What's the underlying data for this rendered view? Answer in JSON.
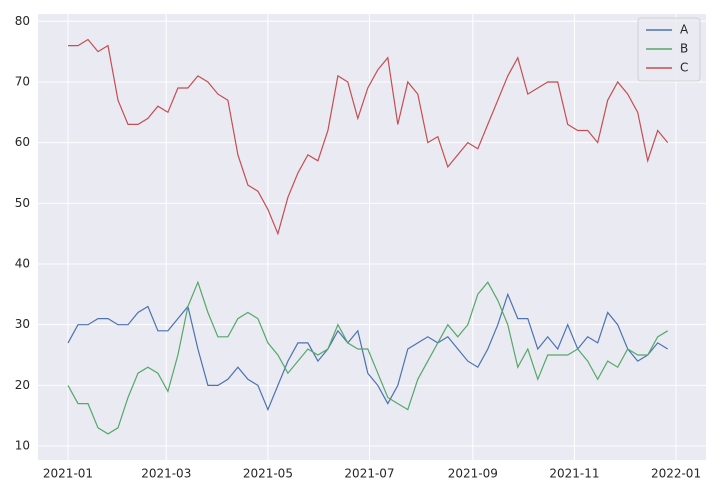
{
  "chart_data": {
    "type": "line",
    "x": [
      0,
      6,
      12,
      18,
      24,
      30,
      36,
      42,
      48,
      54,
      60,
      66,
      72,
      78,
      84,
      90,
      96,
      102,
      108,
      114,
      120,
      126,
      132,
      138,
      144,
      150,
      156,
      162,
      168,
      174,
      180,
      186,
      192,
      198,
      204,
      210,
      216,
      222,
      228,
      234,
      240,
      246,
      252,
      258,
      264,
      270,
      276,
      282,
      288,
      294,
      300,
      306,
      312,
      318,
      324,
      330,
      336,
      342,
      348,
      354,
      360
    ],
    "series": [
      {
        "name": "A",
        "color": "#4c72b0",
        "values": [
          27,
          30,
          30,
          31,
          31,
          30,
          30,
          32,
          33,
          29,
          29,
          31,
          33,
          26,
          20,
          20,
          21,
          23,
          21,
          20,
          16,
          20,
          24,
          27,
          27,
          24,
          26,
          29,
          27,
          29,
          22,
          20,
          17,
          20,
          26,
          27,
          28,
          27,
          28,
          26,
          24,
          23,
          26,
          30,
          35,
          31,
          31,
          26,
          28,
          26,
          30,
          26,
          28,
          27,
          32,
          30,
          26,
          24,
          25,
          27,
          26
        ]
      },
      {
        "name": "B",
        "color": "#55a868",
        "values": [
          20,
          17,
          17,
          13,
          12,
          13,
          18,
          22,
          23,
          22,
          19,
          25,
          33,
          37,
          32,
          28,
          28,
          31,
          32,
          31,
          27,
          25,
          22,
          24,
          26,
          25,
          26,
          30,
          27,
          26,
          26,
          22,
          18,
          17,
          16,
          21,
          24,
          27,
          30,
          28,
          30,
          35,
          37,
          34,
          30,
          23,
          26,
          21,
          25,
          25,
          25,
          26,
          24,
          21,
          24,
          23,
          26,
          25,
          25,
          28,
          29
        ]
      },
      {
        "name": "C",
        "color": "#c44e52",
        "values": [
          76,
          76,
          77,
          75,
          76,
          67,
          63,
          63,
          64,
          66,
          65,
          69,
          69,
          71,
          70,
          68,
          67,
          58,
          53,
          52,
          49,
          45,
          51,
          55,
          58,
          57,
          62,
          71,
          70,
          64,
          69,
          72,
          74,
          63,
          70,
          68,
          60,
          61,
          56,
          58,
          60,
          59,
          63,
          67,
          71,
          74,
          68,
          69,
          70,
          70,
          63,
          62,
          62,
          60,
          67,
          70,
          68,
          65,
          57,
          62,
          60
        ]
      }
    ],
    "xlim": [
      -18,
      383
    ],
    "xticks": [
      {
        "value": 0,
        "label": "2021-01"
      },
      {
        "value": 59,
        "label": "2021-03"
      },
      {
        "value": 120,
        "label": "2021-05"
      },
      {
        "value": 181,
        "label": "2021-07"
      },
      {
        "value": 243,
        "label": "2021-09"
      },
      {
        "value": 304,
        "label": "2021-11"
      },
      {
        "value": 365,
        "label": "2022-01"
      }
    ],
    "ylim": [
      7.7,
      81.2
    ],
    "yticks": [
      10,
      20,
      30,
      40,
      50,
      60,
      70,
      80
    ],
    "grid": true,
    "legend": "upper right"
  }
}
